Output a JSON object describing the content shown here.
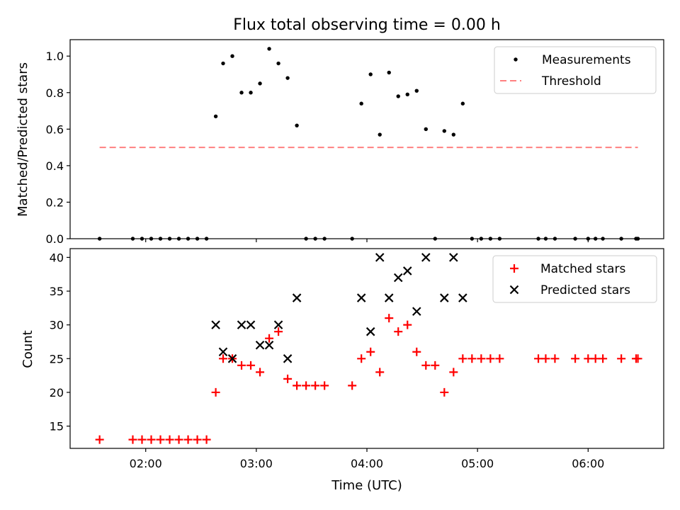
{
  "chart_data": [
    {
      "type": "scatter",
      "title": "Flux total observing time = 0.00 h",
      "xlabel": "",
      "ylabel": "Matched/Predicted stars",
      "xlim": [
        "01:19",
        "06:41"
      ],
      "ylim": [
        0,
        1.09
      ],
      "x_ticks": [
        "02:00",
        "03:00",
        "04:00",
        "05:00",
        "06:00"
      ],
      "y_ticks": [
        0.0,
        0.2,
        0.4,
        0.6,
        0.8,
        1.0
      ],
      "y_tick_labels": [
        "0.0",
        "0.2",
        "0.4",
        "0.6",
        "0.8",
        "1.0"
      ],
      "legend_position": "top-right",
      "series": [
        {
          "name": "Measurements",
          "marker": "dot",
          "color": "#000000",
          "points": [
            [
              "01:35",
              0
            ],
            [
              "01:53",
              0
            ],
            [
              "01:58",
              0
            ],
            [
              "02:03",
              0
            ],
            [
              "02:08",
              0
            ],
            [
              "02:13",
              0
            ],
            [
              "02:18",
              0
            ],
            [
              "02:23",
              0
            ],
            [
              "02:28",
              0
            ],
            [
              "02:33",
              0
            ],
            [
              "02:38",
              0.67
            ],
            [
              "02:42",
              0.96
            ],
            [
              "02:47",
              1.0
            ],
            [
              "02:52",
              0.8
            ],
            [
              "02:57",
              0.8
            ],
            [
              "03:02",
              0.85
            ],
            [
              "03:07",
              1.04
            ],
            [
              "03:12",
              0.96
            ],
            [
              "03:17",
              0.88
            ],
            [
              "03:22",
              0.62
            ],
            [
              "03:27",
              0
            ],
            [
              "03:32",
              0
            ],
            [
              "03:37",
              0
            ],
            [
              "03:52",
              0
            ],
            [
              "03:57",
              0.74
            ],
            [
              "04:02",
              0.9
            ],
            [
              "04:07",
              0.57
            ],
            [
              "04:12",
              0.91
            ],
            [
              "04:17",
              0.78
            ],
            [
              "04:22",
              0.79
            ],
            [
              "04:27",
              0.81
            ],
            [
              "04:32",
              0.6
            ],
            [
              "04:37",
              0
            ],
            [
              "04:42",
              0.59
            ],
            [
              "04:47",
              0.57
            ],
            [
              "04:52",
              0.74
            ],
            [
              "04:57",
              0
            ],
            [
              "05:02",
              0
            ],
            [
              "05:07",
              0
            ],
            [
              "05:12",
              0
            ],
            [
              "05:33",
              0
            ],
            [
              "05:37",
              0
            ],
            [
              "05:42",
              0
            ],
            [
              "05:53",
              0
            ],
            [
              "06:00",
              0
            ],
            [
              "06:04",
              0
            ],
            [
              "06:08",
              0
            ],
            [
              "06:18",
              0
            ],
            [
              "06:26",
              0
            ],
            [
              "06:27",
              0
            ]
          ]
        },
        {
          "name": "Threshold",
          "marker": "dashed-line",
          "color": "#ff8080",
          "points": [
            [
              "01:35",
              0.5
            ],
            [
              "06:27",
              0.5
            ]
          ]
        }
      ]
    },
    {
      "type": "scatter",
      "title": "",
      "xlabel": "Time (UTC)",
      "ylabel": "Count",
      "xlim": [
        "01:19",
        "06:41"
      ],
      "ylim": [
        11.7,
        41.3
      ],
      "x_ticks": [
        "02:00",
        "03:00",
        "04:00",
        "05:00",
        "06:00"
      ],
      "y_ticks": [
        15,
        20,
        25,
        30,
        35,
        40
      ],
      "y_tick_labels": [
        "15",
        "20",
        "25",
        "30",
        "35",
        "40"
      ],
      "legend_position": "top-right",
      "series": [
        {
          "name": "Matched stars",
          "marker": "plus",
          "color": "#ff0000",
          "points": [
            [
              "01:35",
              13
            ],
            [
              "01:53",
              13
            ],
            [
              "01:58",
              13
            ],
            [
              "02:03",
              13
            ],
            [
              "02:08",
              13
            ],
            [
              "02:13",
              13
            ],
            [
              "02:18",
              13
            ],
            [
              "02:23",
              13
            ],
            [
              "02:28",
              13
            ],
            [
              "02:33",
              13
            ],
            [
              "02:38",
              20
            ],
            [
              "02:42",
              25
            ],
            [
              "02:47",
              25
            ],
            [
              "02:52",
              24
            ],
            [
              "02:57",
              24
            ],
            [
              "03:02",
              23
            ],
            [
              "03:07",
              28
            ],
            [
              "03:12",
              29
            ],
            [
              "03:17",
              22
            ],
            [
              "03:22",
              21
            ],
            [
              "03:27",
              21
            ],
            [
              "03:32",
              21
            ],
            [
              "03:37",
              21
            ],
            [
              "03:52",
              21
            ],
            [
              "03:57",
              25
            ],
            [
              "04:02",
              26
            ],
            [
              "04:07",
              23
            ],
            [
              "04:12",
              31
            ],
            [
              "04:17",
              29
            ],
            [
              "04:22",
              30
            ],
            [
              "04:27",
              26
            ],
            [
              "04:32",
              24
            ],
            [
              "04:37",
              24
            ],
            [
              "04:42",
              20
            ],
            [
              "04:47",
              23
            ],
            [
              "04:52",
              25
            ],
            [
              "04:57",
              25
            ],
            [
              "05:02",
              25
            ],
            [
              "05:07",
              25
            ],
            [
              "05:12",
              25
            ],
            [
              "05:33",
              25
            ],
            [
              "05:37",
              25
            ],
            [
              "05:42",
              25
            ],
            [
              "05:53",
              25
            ],
            [
              "06:00",
              25
            ],
            [
              "06:04",
              25
            ],
            [
              "06:08",
              25
            ],
            [
              "06:18",
              25
            ],
            [
              "06:26",
              25
            ],
            [
              "06:27",
              25
            ]
          ]
        },
        {
          "name": "Predicted stars",
          "marker": "x",
          "color": "#000000",
          "points": [
            [
              "02:38",
              30
            ],
            [
              "02:42",
              26
            ],
            [
              "02:47",
              25
            ],
            [
              "02:52",
              30
            ],
            [
              "02:57",
              30
            ],
            [
              "03:02",
              27
            ],
            [
              "03:07",
              27
            ],
            [
              "03:12",
              30
            ],
            [
              "03:17",
              25
            ],
            [
              "03:22",
              34
            ],
            [
              "03:57",
              34
            ],
            [
              "04:02",
              29
            ],
            [
              "04:07",
              40
            ],
            [
              "04:12",
              34
            ],
            [
              "04:17",
              37
            ],
            [
              "04:22",
              38
            ],
            [
              "04:27",
              32
            ],
            [
              "04:32",
              40
            ],
            [
              "04:42",
              34
            ],
            [
              "04:47",
              40
            ],
            [
              "04:52",
              34
            ]
          ]
        }
      ]
    }
  ]
}
